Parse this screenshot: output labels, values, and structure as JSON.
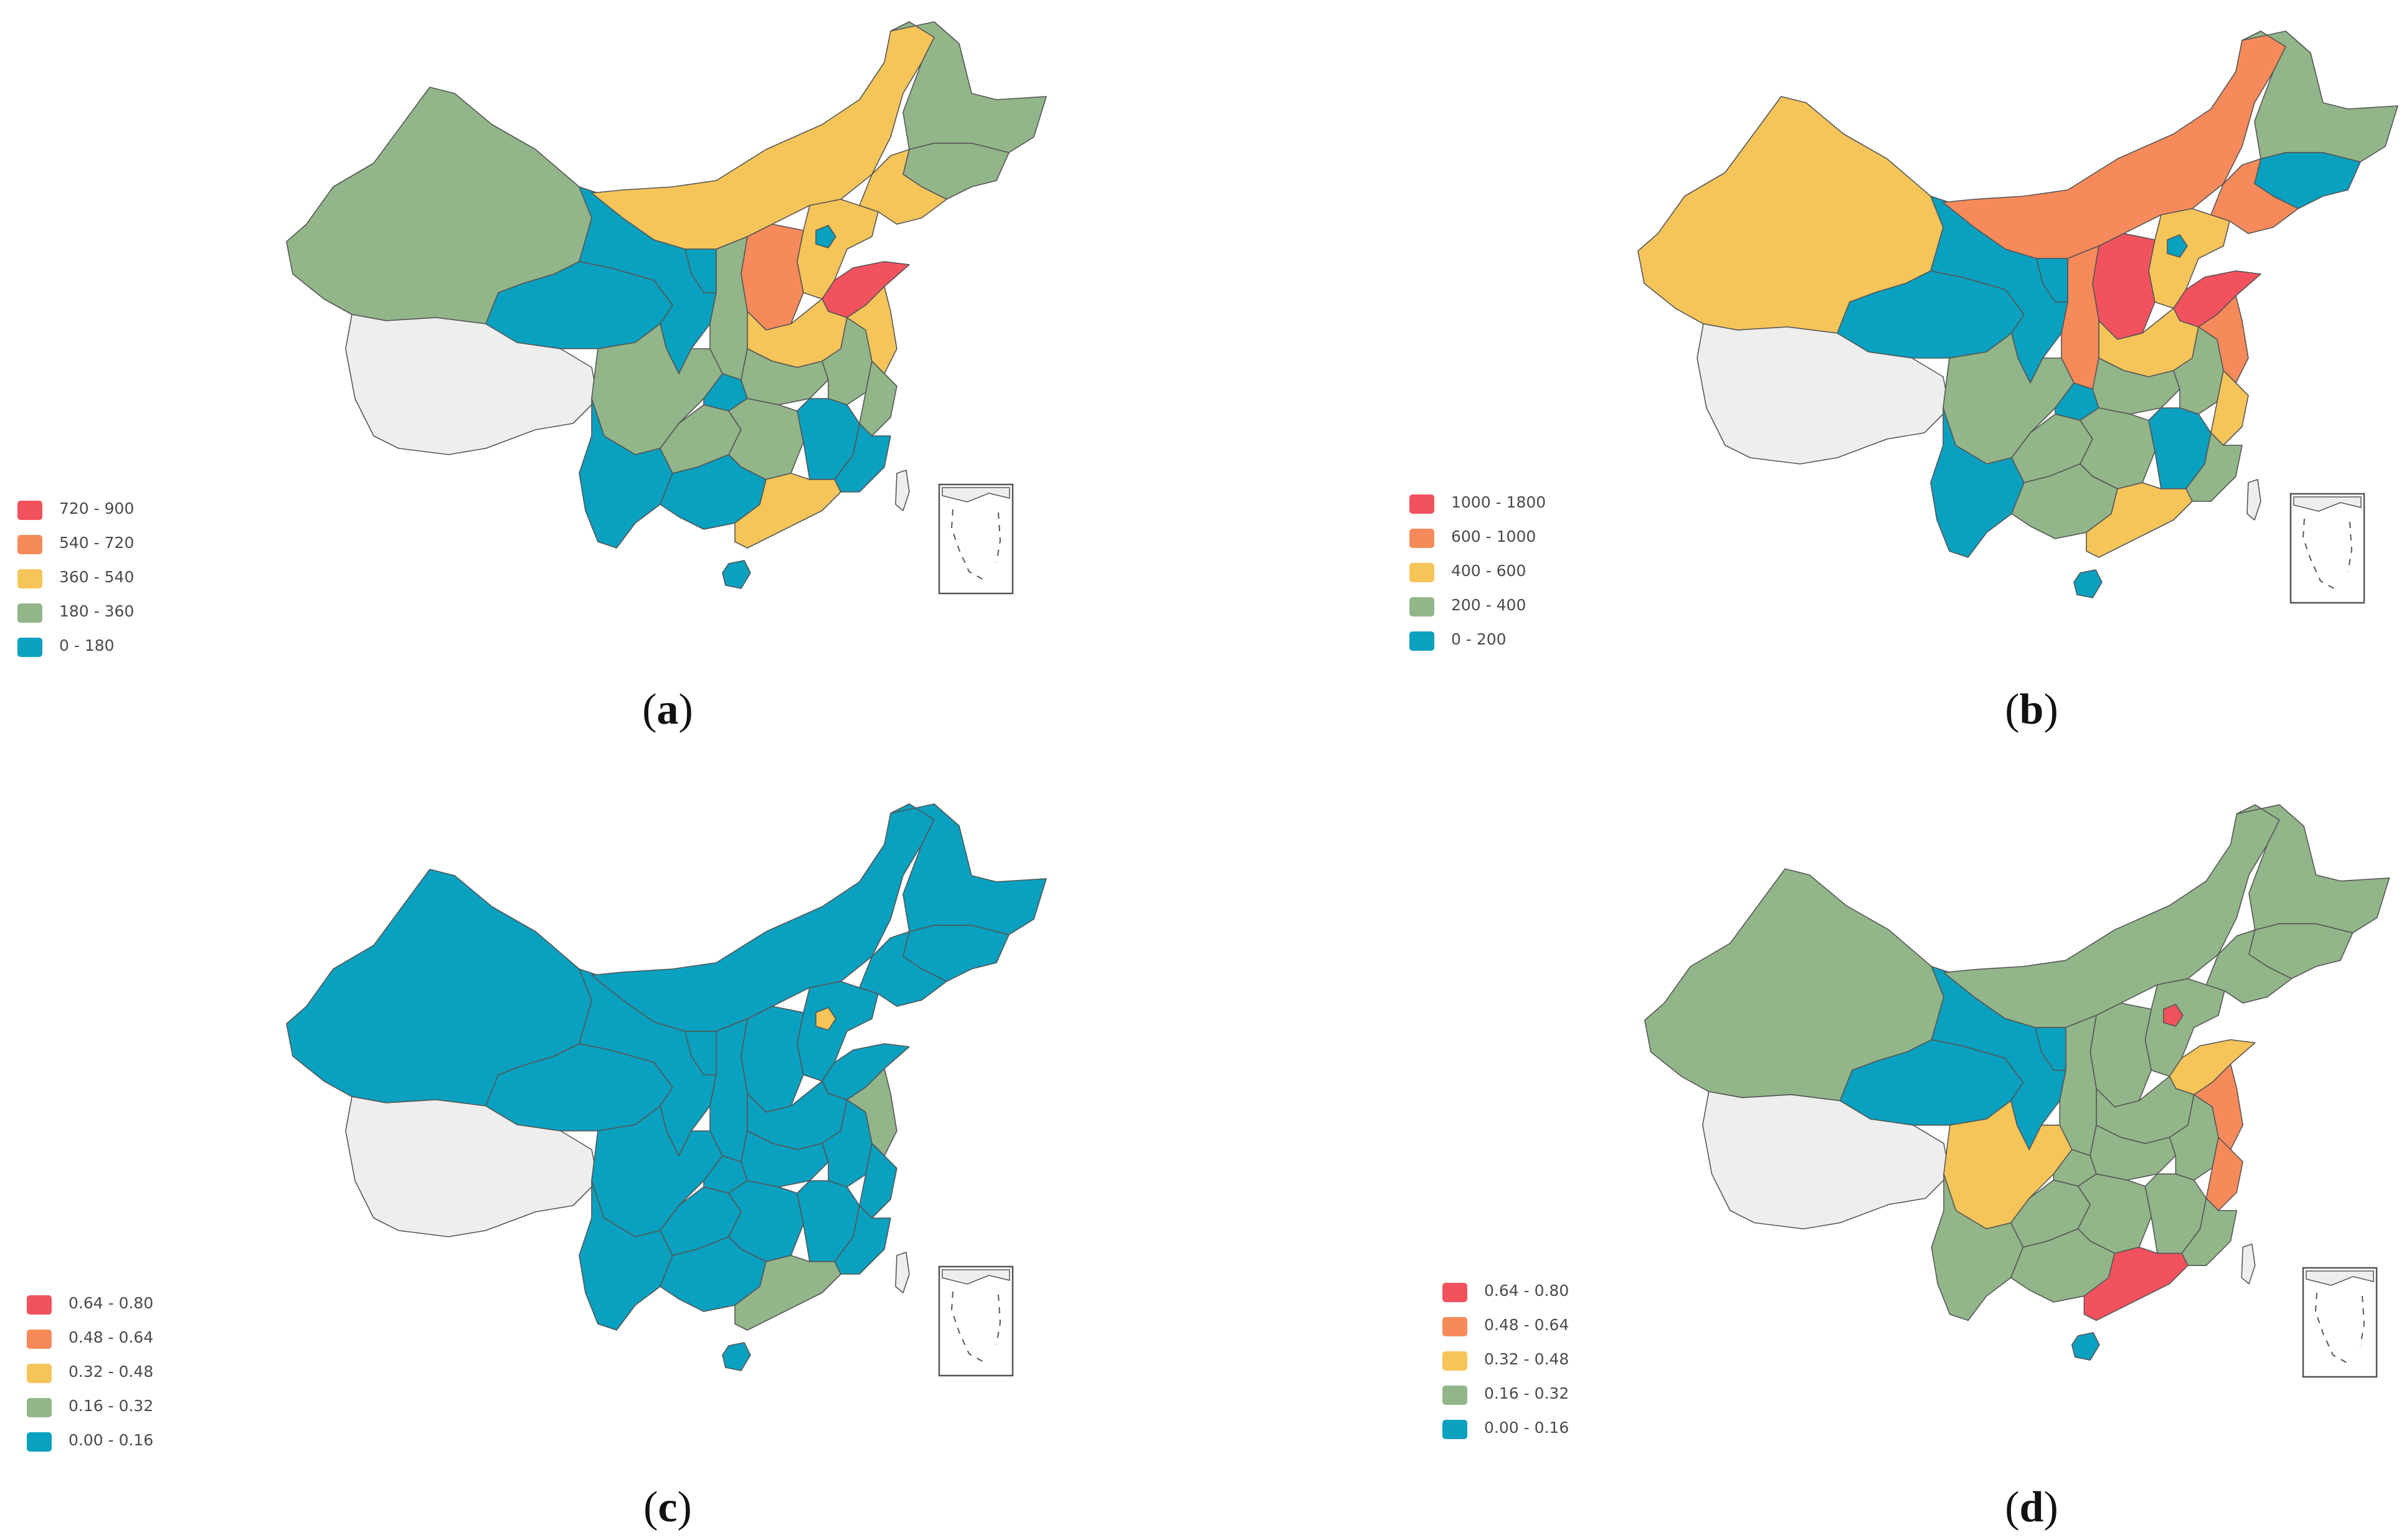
{
  "panels": [
    {
      "id": "a",
      "caption_letter": "a",
      "legend": [
        {
          "label": "720 - 900",
          "color": "#f2525e"
        },
        {
          "label": "540 - 720",
          "color": "#f78a5a"
        },
        {
          "label": "360 - 540",
          "color": "#f5c55a"
        },
        {
          "label": "180 - 360",
          "color": "#92b58a"
        },
        {
          "label": "0 - 180",
          "color": "#0aa0bf"
        }
      ],
      "regions": {
        "xinjiang": "#92b58a",
        "tibet": "#eeeeee",
        "qinghai": "#0aa0bf",
        "gansu": "#0aa0bf",
        "inner_mongolia": "#f5c55a",
        "heilongjiang": "#92b58a",
        "jilin": "#92b58a",
        "liaoning": "#f5c55a",
        "hebei": "#f5c55a",
        "beijing": "#0aa0bf",
        "shanxi": "#f78a5a",
        "shandong": "#f2525e",
        "henan": "#f5c55a",
        "shaanxi": "#92b58a",
        "ningxia": "#0aa0bf",
        "sichuan": "#92b58a",
        "chongqing": "#0aa0bf",
        "hubei": "#92b58a",
        "anhui": "#92b58a",
        "jiangsu": "#f5c55a",
        "zhejiang": "#92b58a",
        "yunnan": "#0aa0bf",
        "guizhou": "#92b58a",
        "hunan": "#92b58a",
        "jiangxi": "#0aa0bf",
        "fujian": "#0aa0bf",
        "guangxi": "#0aa0bf",
        "guangdong": "#f5c55a",
        "hainan": "#0aa0bf",
        "taiwan": "#eeeeee"
      }
    },
    {
      "id": "b",
      "caption_letter": "b",
      "legend": [
        {
          "label": "1000 - 1800",
          "color": "#f2525e"
        },
        {
          "label": "600 - 1000",
          "color": "#f78a5a"
        },
        {
          "label": "400 - 600",
          "color": "#f5c55a"
        },
        {
          "label": "200 - 400",
          "color": "#92b58a"
        },
        {
          "label": "0 - 200",
          "color": "#0aa0bf"
        }
      ],
      "regions": {
        "xinjiang": "#f5c55a",
        "tibet": "#eeeeee",
        "qinghai": "#0aa0bf",
        "gansu": "#0aa0bf",
        "inner_mongolia": "#f78a5a",
        "heilongjiang": "#92b58a",
        "jilin": "#0aa0bf",
        "liaoning": "#f78a5a",
        "hebei": "#f5c55a",
        "beijing": "#0aa0bf",
        "shanxi": "#f2525e",
        "shandong": "#f2525e",
        "henan": "#f5c55a",
        "shaanxi": "#f78a5a",
        "ningxia": "#0aa0bf",
        "sichuan": "#92b58a",
        "chongqing": "#0aa0bf",
        "hubei": "#92b58a",
        "anhui": "#92b58a",
        "jiangsu": "#f78a5a",
        "zhejiang": "#f5c55a",
        "yunnan": "#0aa0bf",
        "guizhou": "#92b58a",
        "hunan": "#92b58a",
        "jiangxi": "#0aa0bf",
        "fujian": "#92b58a",
        "guangxi": "#92b58a",
        "guangdong": "#f5c55a",
        "hainan": "#0aa0bf",
        "taiwan": "#eeeeee"
      }
    },
    {
      "id": "c",
      "caption_letter": "c",
      "legend": [
        {
          "label": "0.64 - 0.80",
          "color": "#f2525e"
        },
        {
          "label": "0.48 - 0.64",
          "color": "#f78a5a"
        },
        {
          "label": "0.32 - 0.48",
          "color": "#f5c55a"
        },
        {
          "label": "0.16 - 0.32",
          "color": "#92b58a"
        },
        {
          "label": "0.00 - 0.16",
          "color": "#0aa0bf"
        }
      ],
      "regions": {
        "xinjiang": "#0aa0bf",
        "tibet": "#eeeeee",
        "qinghai": "#0aa0bf",
        "gansu": "#0aa0bf",
        "inner_mongolia": "#0aa0bf",
        "heilongjiang": "#0aa0bf",
        "jilin": "#0aa0bf",
        "liaoning": "#0aa0bf",
        "hebei": "#0aa0bf",
        "beijing": "#f5c55a",
        "shanxi": "#0aa0bf",
        "shandong": "#0aa0bf",
        "henan": "#0aa0bf",
        "shaanxi": "#0aa0bf",
        "ningxia": "#0aa0bf",
        "sichuan": "#0aa0bf",
        "chongqing": "#0aa0bf",
        "hubei": "#0aa0bf",
        "anhui": "#0aa0bf",
        "jiangsu": "#92b58a",
        "zhejiang": "#0aa0bf",
        "yunnan": "#0aa0bf",
        "guizhou": "#0aa0bf",
        "hunan": "#0aa0bf",
        "jiangxi": "#0aa0bf",
        "fujian": "#0aa0bf",
        "guangxi": "#0aa0bf",
        "guangdong": "#92b58a",
        "hainan": "#0aa0bf",
        "taiwan": "#eeeeee"
      }
    },
    {
      "id": "d",
      "caption_letter": "d",
      "legend": [
        {
          "label": "0.64 - 0.80",
          "color": "#f2525e"
        },
        {
          "label": "0.48 - 0.64",
          "color": "#f78a5a"
        },
        {
          "label": "0.32 - 0.48",
          "color": "#f5c55a"
        },
        {
          "label": "0.16 - 0.32",
          "color": "#92b58a"
        },
        {
          "label": "0.00 - 0.16",
          "color": "#0aa0bf"
        }
      ],
      "regions": {
        "xinjiang": "#92b58a",
        "tibet": "#eeeeee",
        "qinghai": "#0aa0bf",
        "gansu": "#0aa0bf",
        "inner_mongolia": "#92b58a",
        "heilongjiang": "#92b58a",
        "jilin": "#92b58a",
        "liaoning": "#92b58a",
        "hebei": "#92b58a",
        "beijing": "#f2525e",
        "shanxi": "#92b58a",
        "shandong": "#f5c55a",
        "henan": "#92b58a",
        "shaanxi": "#92b58a",
        "ningxia": "#0aa0bf",
        "sichuan": "#f5c55a",
        "chongqing": "#92b58a",
        "hubei": "#92b58a",
        "anhui": "#92b58a",
        "jiangsu": "#f78a5a",
        "zhejiang": "#f78a5a",
        "yunnan": "#92b58a",
        "guizhou": "#92b58a",
        "hunan": "#92b58a",
        "jiangxi": "#92b58a",
        "fujian": "#92b58a",
        "guangxi": "#92b58a",
        "guangdong": "#f2525e",
        "hainan": "#0aa0bf",
        "taiwan": "#eeeeee"
      }
    }
  ]
}
